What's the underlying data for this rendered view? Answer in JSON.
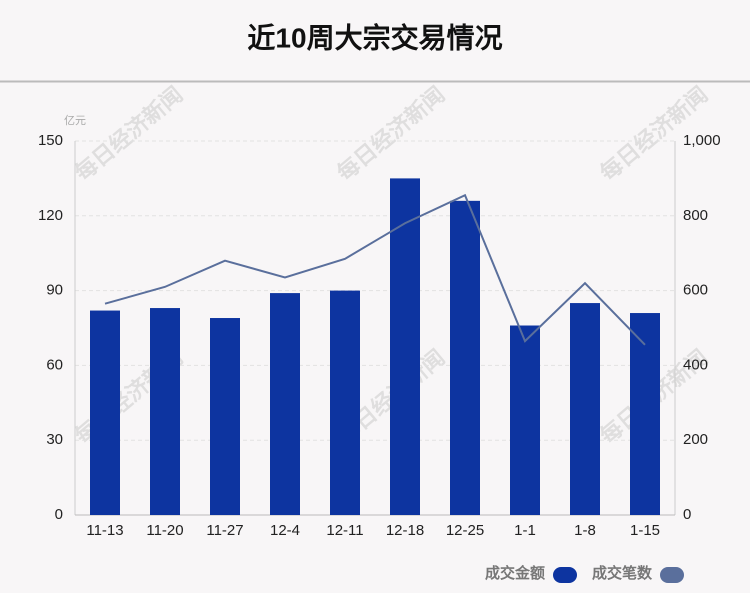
{
  "chart_data": {
    "type": "bar",
    "title": "近10周大宗交易情况",
    "y_unit": "亿元",
    "watermark": "每日经济新闻",
    "categories": [
      "11-13",
      "11-20",
      "11-27",
      "12-4",
      "12-11",
      "12-18",
      "12-25",
      "1-1",
      "1-8",
      "1-15"
    ],
    "series": [
      {
        "name": "成交金额",
        "color": "#0d34a0",
        "values": [
          82,
          83,
          79,
          89,
          90,
          135,
          126,
          76,
          85,
          81
        ]
      },
      {
        "name": "成交笔数",
        "color": "#5a6f9c",
        "axis": "y2",
        "type": "line",
        "values": [
          565,
          610,
          680,
          635,
          685,
          780,
          855,
          465,
          620,
          455
        ]
      }
    ],
    "ylim": [
      0,
      150
    ],
    "yticks": [
      0,
      30,
      60,
      90,
      120,
      150
    ],
    "y2lim": [
      0,
      1000
    ],
    "y2ticks": [
      0,
      200,
      400,
      600,
      800,
      {
        "value": 1000,
        "label": "1,000"
      }
    ],
    "grid": true,
    "legend": "bottom-right"
  }
}
